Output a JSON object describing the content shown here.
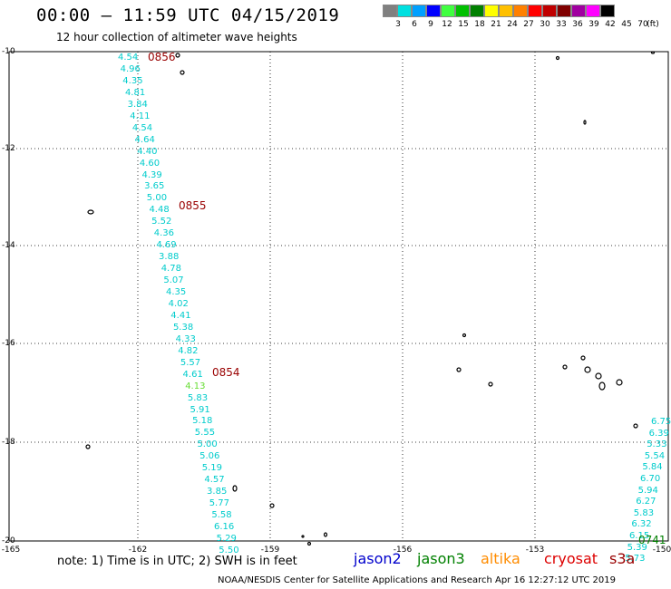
{
  "header": {
    "title": "00:00 – 11:59 UTC 04/15/2019",
    "subtitle": "12 hour collection of altimeter wave heights"
  },
  "legend": {
    "unit": "(ft)",
    "bins": [
      {
        "label": "3",
        "color": "#808080"
      },
      {
        "label": "6",
        "color": "#00e0e0"
      },
      {
        "label": "9",
        "color": "#00a0ff"
      },
      {
        "label": "12",
        "color": "#0000ff"
      },
      {
        "label": "15",
        "color": "#40ff40"
      },
      {
        "label": "18",
        "color": "#00c000"
      },
      {
        "label": "21",
        "color": "#008000"
      },
      {
        "label": "24",
        "color": "#ffff00"
      },
      {
        "label": "27",
        "color": "#ffc000"
      },
      {
        "label": "30",
        "color": "#ff8000"
      },
      {
        "label": "33",
        "color": "#ff0000"
      },
      {
        "label": "36",
        "color": "#c00000"
      },
      {
        "label": "39",
        "color": "#800000"
      },
      {
        "label": "42",
        "color": "#a000a0"
      },
      {
        "label": "45",
        "color": "#ff00ff"
      },
      {
        "label": "70",
        "color": "#000000"
      }
    ]
  },
  "axes": {
    "lat_labels": [
      "-10",
      "-12",
      "-14",
      "-16",
      "-18",
      "-20"
    ],
    "lon_labels": [
      "-165",
      "-162",
      "-159",
      "-156",
      "-153",
      "-150"
    ]
  },
  "track": {
    "color": "#00cccc",
    "values": [
      "4.54",
      "4.96",
      "4.35",
      "4.81",
      "3.84",
      "4.11",
      "4.54",
      "4.64",
      "4.40",
      "4.60",
      "4.39",
      "3.65",
      "5.00",
      "4.48",
      "5.52",
      "4.36",
      "4.69",
      "3.88",
      "4.78",
      "5.07",
      "4.35",
      "4.02",
      "4.41",
      "5.38",
      "4.33",
      "4.82",
      "5.57",
      "4.61",
      "4.13",
      "5.83",
      "5.91",
      "5.18",
      "5.55",
      "5.00",
      "5.06",
      "5.19",
      "4.57",
      "3.85",
      "5.77",
      "5.58",
      "6.16",
      "5.29",
      "5.50"
    ],
    "times": [
      "0856",
      "0855",
      "0854"
    ]
  },
  "track_right": {
    "values": [
      "6.75",
      "6.39",
      "5.33",
      "5.54",
      "5.84",
      "6.70",
      "5.94",
      "6.27",
      "5.83",
      "6.32",
      "6.15",
      "5.39",
      "5.73"
    ],
    "times": [
      "0741"
    ]
  },
  "footer": {
    "note": "note:  1) Time is in UTC;  2) SWH is in feet",
    "satellites": [
      {
        "name": "jason2",
        "color": "#0000cc"
      },
      {
        "name": "jason3",
        "color": "#008000"
      },
      {
        "name": "altika",
        "color": "#ff8c00"
      },
      {
        "name": "cryosat",
        "color": "#dd0000"
      },
      {
        "name": "s3a",
        "color": "#990000"
      }
    ],
    "credit": "NOAA/NESDIS Center for Satellite Applications and Research    Apr 16 12:27:12 UTC 2019"
  }
}
